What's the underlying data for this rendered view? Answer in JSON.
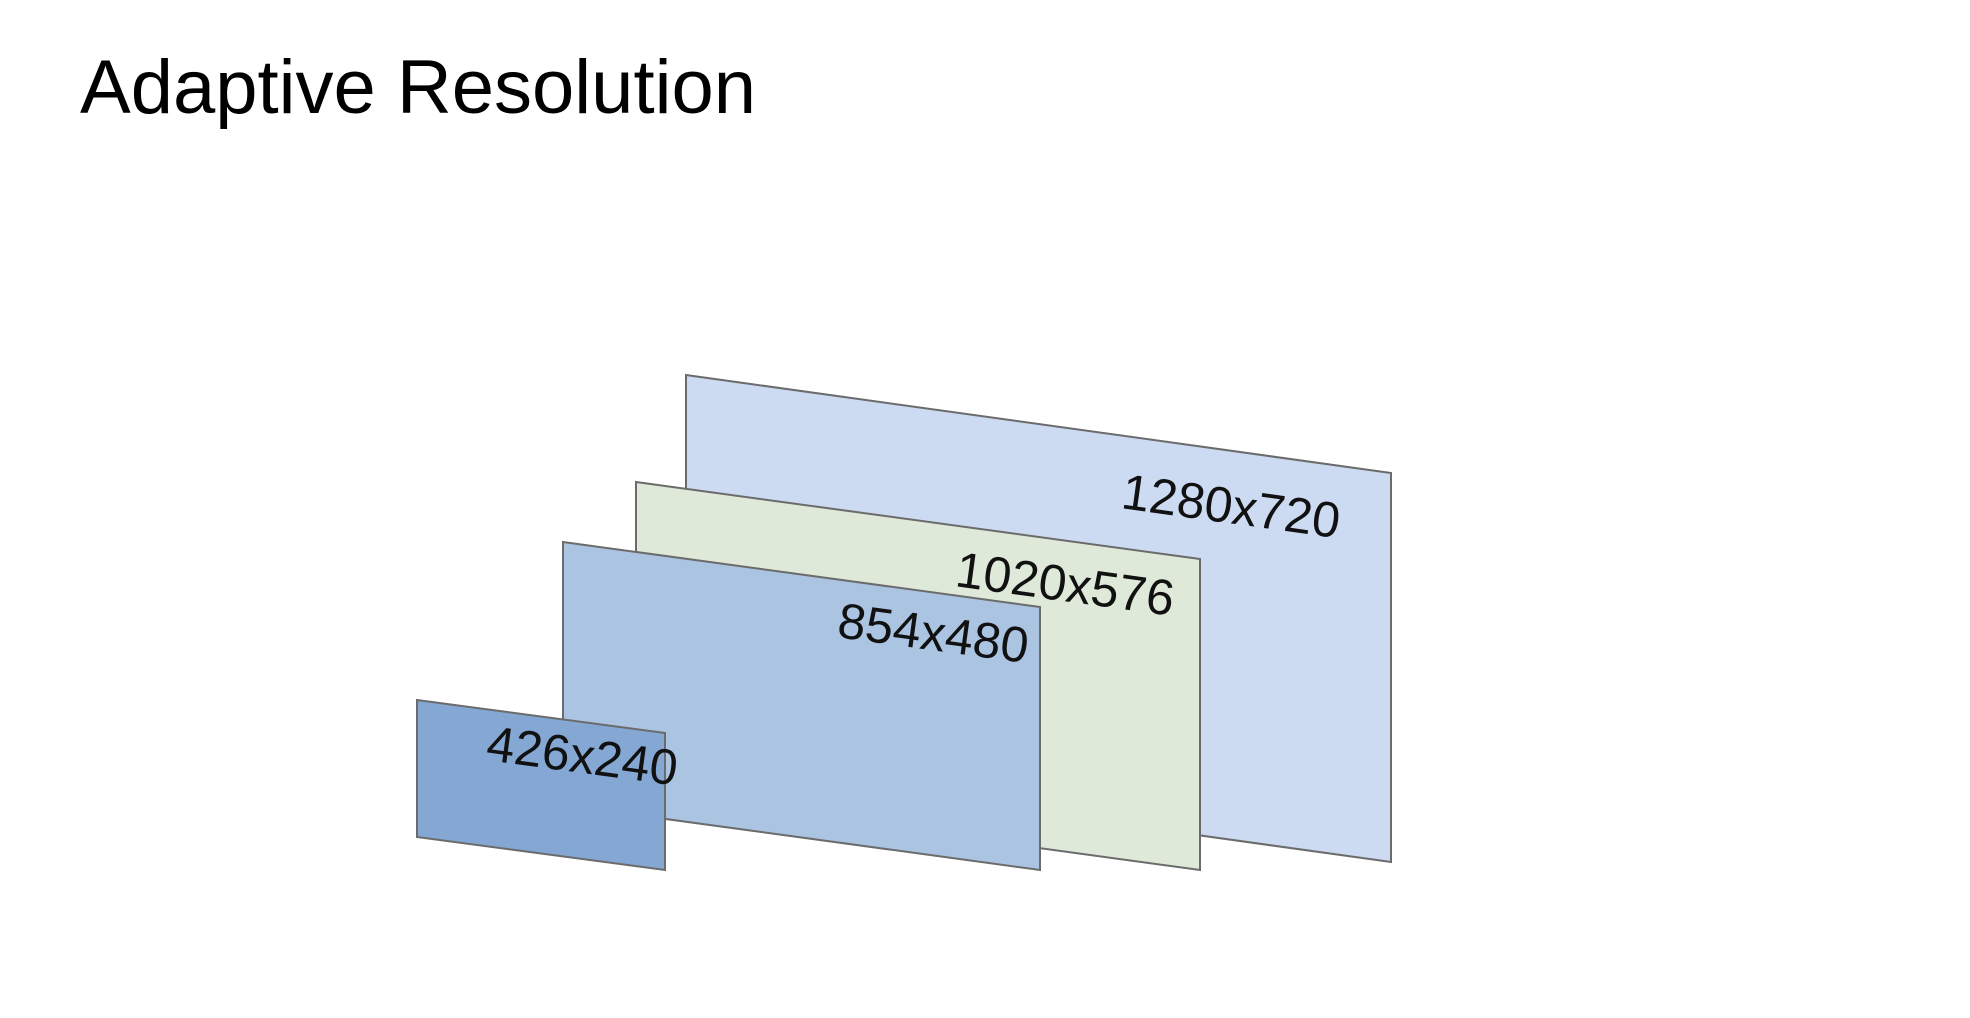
{
  "title": "Adaptive Resolution",
  "frames": [
    {
      "id": "1280x720",
      "label": "1280x720",
      "fill": "#ccdaf2"
    },
    {
      "id": "1020x576",
      "label": "1020x576",
      "fill": "#dfe9d9"
    },
    {
      "id": "854x480",
      "label": "854x480",
      "fill": "#aac4e2"
    },
    {
      "id": "426x240",
      "label": "426x240",
      "fill": "#84a7d3"
    }
  ],
  "colors": {
    "frame_border": "#6b6b6b",
    "text": "#000000"
  }
}
